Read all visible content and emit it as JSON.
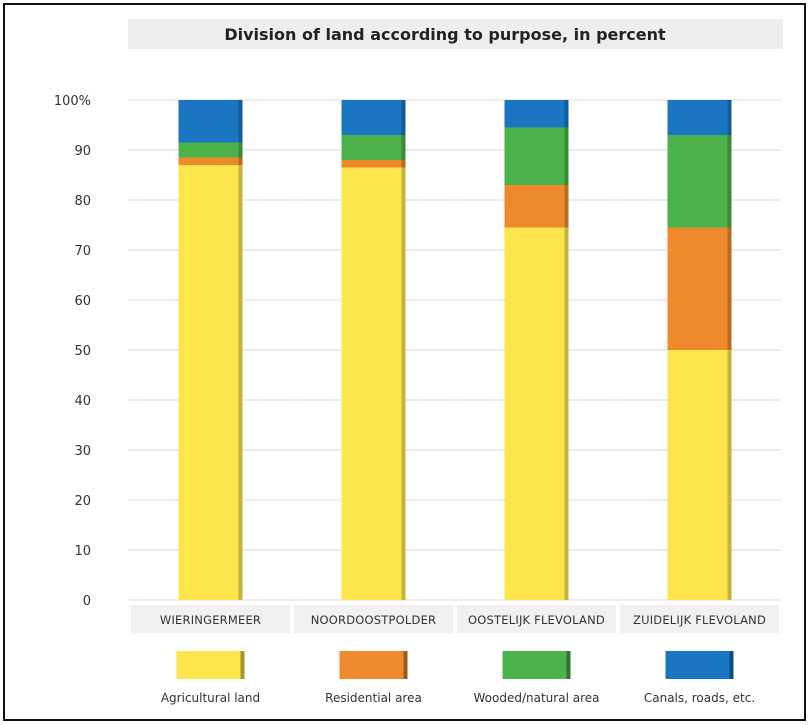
{
  "chart_data": {
    "type": "bar",
    "stacked": true,
    "title": "Division of land according to purpose, in percent",
    "xlabel": "",
    "ylabel": "",
    "ylim": [
      0,
      100
    ],
    "y_ticks": [
      0,
      10,
      20,
      30,
      40,
      50,
      60,
      70,
      80,
      90,
      100
    ],
    "y_tick_labels": [
      "0",
      "10",
      "20",
      "30",
      "40",
      "50",
      "60",
      "70",
      "80",
      "90",
      "100%"
    ],
    "grid": true,
    "legend_position": "bottom",
    "categories": [
      "WIERINGERMEER",
      "NOORDOOSTPOLDER",
      "OOSTELIJK FLEVOLAND",
      "ZUIDELIJK FLEVOLAND"
    ],
    "series": [
      {
        "name": "Agricultural land",
        "color": "#fde64b",
        "values": [
          87,
          86.5,
          74.5,
          50
        ]
      },
      {
        "name": "Residential area",
        "color": "#ee8a2c",
        "values": [
          1.5,
          1.5,
          8.5,
          24.5
        ]
      },
      {
        "name": "Wooded/natural area",
        "color": "#4cb24a",
        "values": [
          3,
          5,
          11.5,
          18.5
        ]
      },
      {
        "name": "Canals, roads, etc.",
        "color": "#1a76c2",
        "values": [
          8.5,
          7,
          5.5,
          7
        ]
      }
    ]
  }
}
